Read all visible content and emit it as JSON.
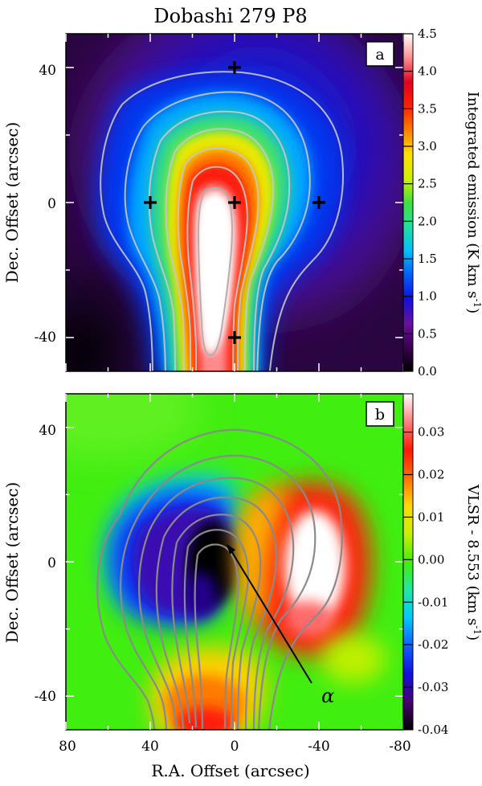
{
  "title": "Dobashi 279 P8",
  "chart_data": [
    {
      "type": "heatmap",
      "panel_label": "a",
      "ylabel": "Dec. Offset (arcsec)",
      "colorbar_label_main": "Integrated emission (K km s",
      "colorbar_label_sup": "-1",
      "colorbar_label_close": ")",
      "colorbar_ticks": [
        "0.0",
        "0.5",
        "1.0",
        "1.5",
        "2.0",
        "2.5",
        "3.0",
        "3.5",
        "4.0",
        "4.5"
      ],
      "colorbar_range": [
        0.0,
        4.5
      ],
      "colormap": [
        "#000000",
        "#3a0050",
        "#6a10a0",
        "#1010e0",
        "#0060ff",
        "#00c0ff",
        "#20e0a0",
        "#40e040",
        "#d0f000",
        "#ffe000",
        "#ff8000",
        "#ff2000",
        "#e00020",
        "#ff9090",
        "#ffffff"
      ],
      "y_ticks": [
        "40",
        "0",
        "-40"
      ],
      "xlim": [
        80,
        -80
      ],
      "ylim": [
        -50,
        50
      ],
      "markers": [
        [
          0,
          40
        ],
        [
          40,
          0
        ],
        [
          0,
          0
        ],
        [
          -40,
          0
        ],
        [
          0,
          -40
        ]
      ]
    },
    {
      "type": "heatmap",
      "panel_label": "b",
      "ylabel": "Dec. Offset (arcsec)",
      "xlabel": "R.A. Offset (arcsec)",
      "colorbar_label_main": "VLSR - 8.553 (km s",
      "colorbar_label_sup": "-1",
      "colorbar_label_close": ")",
      "colorbar_ticks": [
        "0.03",
        "0.02",
        "0.01",
        "0.00",
        "-0.01",
        "-0.02",
        "-0.03",
        "-0.04"
      ],
      "colorbar_range": [
        -0.04,
        0.039
      ],
      "colormap": [
        "#000000",
        "#4a0070",
        "#1010e0",
        "#1060ff",
        "#00c8ff",
        "#20e8a0",
        "#40f000",
        "#c8f000",
        "#ffd800",
        "#ff7000",
        "#ff1800",
        "#ff8080",
        "#ffffff"
      ],
      "x_ticks": [
        "80",
        "40",
        "0",
        "-40",
        "-80"
      ],
      "y_ticks": [
        "40",
        "0",
        "-40"
      ],
      "xlim": [
        80,
        -80
      ],
      "ylim": [
        -50,
        50
      ],
      "annotation": "α"
    }
  ]
}
